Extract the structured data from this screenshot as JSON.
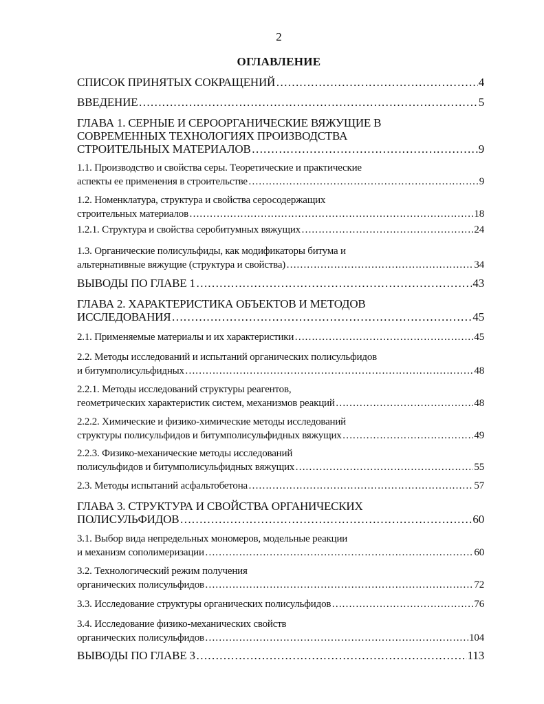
{
  "page_number": "2",
  "title": "ОГЛАВЛЕНИЕ",
  "toc": [
    {
      "lines": [
        "СПИСОК ПРИНЯТЫХ СОКРАЩЕНИЙ"
      ],
      "page": "4",
      "level": "big"
    },
    {
      "lines": [
        "ВВЕДЕНИЕ"
      ],
      "page": "5",
      "level": "big"
    },
    {
      "lines": [
        "ГЛАВА 1. СЕРНЫЕ И СЕРООРГАНИЧЕСКИЕ ВЯЖУЩИЕ В",
        "СОВРЕМЕННЫХ ТЕХНОЛОГИЯХ ПРОИЗВОДСТВА",
        "СТРОИТЕЛЬНЫХ МАТЕРИАЛОВ"
      ],
      "page": "9",
      "level": "big"
    },
    {
      "lines": [
        "1.1.  Производство и свойства серы. Теоретические и практические",
        "аспекты ее применения в строительстве"
      ],
      "page": "9",
      "level": "small"
    },
    {
      "lines": [
        "1.2.  Номенклатура, структура и свойства серосодержащих",
        "строительных материалов"
      ],
      "page": "18",
      "level": "small"
    },
    {
      "lines": [
        "1.2.1. Структура и свойства серобитумных вяжущих"
      ],
      "page": "24",
      "level": "small"
    },
    {
      "lines": [
        "1.3.  Органические полисульфиды, как модификаторы битума и",
        "альтернативные вяжущие (структура и свойства)"
      ],
      "page": "34",
      "level": "small"
    },
    {
      "lines": [
        "ВЫВОДЫ ПО ГЛАВЕ 1"
      ],
      "page": "43",
      "level": "big"
    },
    {
      "lines": [
        "ГЛАВА 2. ХАРАКТЕРИСТИКА ОБЪЕКТОВ И МЕТОДОВ",
        "ИССЛЕДОВАНИЯ"
      ],
      "page": "45",
      "level": "big"
    },
    {
      "lines": [
        "2.1. Применяемые материалы и их характеристики"
      ],
      "page": "45",
      "level": "small"
    },
    {
      "lines": [
        "2.2. Методы исследований и испытаний органических полисульфидов",
        "и битумполисульфидных"
      ],
      "page": "48",
      "level": "small"
    },
    {
      "lines": [
        "2.2.1. Методы исследований структуры реагентов,",
        "геометрических характеристик систем, механизмов реакций"
      ],
      "page": "48",
      "level": "small"
    },
    {
      "lines": [
        "2.2.2. Химические и физико-химические методы исследований",
        "структуры полисульфидов и битумполисульфидных вяжущих"
      ],
      "page": "49",
      "level": "small"
    },
    {
      "lines": [
        "2.2.3. Физико-механические методы исследований",
        "полисульфидов и битумполисульфидных вяжущих"
      ],
      "page": "55",
      "level": "small"
    },
    {
      "lines": [
        "2.3.  Методы испытаний асфальтобетона"
      ],
      "page": "57",
      "level": "small"
    },
    {
      "lines": [
        "ГЛАВА 3. СТРУКТУРА И СВОЙСТВА ОРГАНИЧЕСКИХ",
        "ПОЛИСУЛЬФИДОВ"
      ],
      "page": "60",
      "level": "big"
    },
    {
      "lines": [
        "3.1. Выбор вида непредельных мономеров, модельные реакции",
        "и механизм  сополимеризации"
      ],
      "page": "60",
      "level": "small"
    },
    {
      "lines": [
        "3.2. Технологический режим получения",
        "органических полисульфидов"
      ],
      "page": "72",
      "level": "small"
    },
    {
      "lines": [
        "3.3.  Исследование структуры органических полисульфидов"
      ],
      "page": "76",
      "level": "small"
    },
    {
      "lines": [
        "3.4.  Исследование физико-механических свойств",
        "органических полисульфидов"
      ],
      "page": "104",
      "level": "small"
    },
    {
      "lines": [
        "ВЫВОДЫ ПО ГЛАВЕ 3"
      ],
      "page": "113",
      "level": "big"
    }
  ]
}
